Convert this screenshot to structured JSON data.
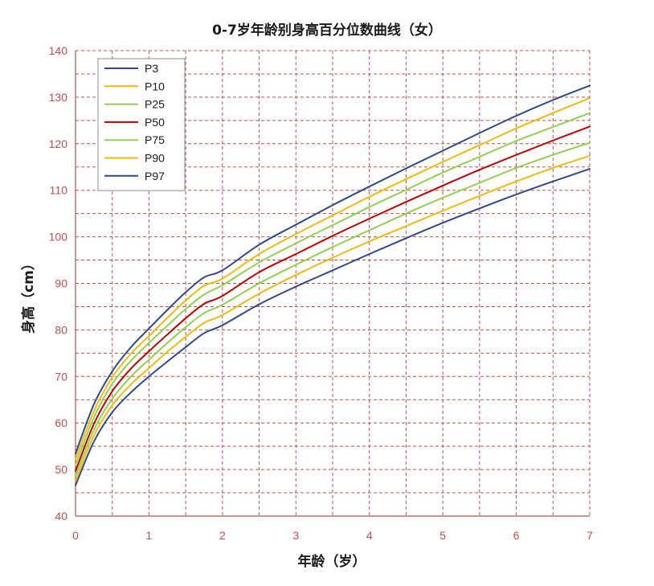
{
  "chart_data": {
    "type": "line",
    "title": "0-7岁年龄别身高百分位数曲线（女）",
    "xlabel": "年龄（岁）",
    "ylabel": "身高（cm）",
    "xlim": [
      0,
      7
    ],
    "ylim": [
      40,
      140
    ],
    "x_ticks": [
      0,
      1,
      2,
      3,
      4,
      5,
      6,
      7
    ],
    "y_ticks": [
      40,
      50,
      60,
      70,
      80,
      90,
      100,
      110,
      120,
      130,
      140
    ],
    "grid": true,
    "grid_minor_x": 0.5,
    "grid_minor_y": 5,
    "legend_position": "top-left",
    "colors": {
      "grid": "#c0504d",
      "axis": "#c0504d",
      "tick_label": "#c0504d"
    },
    "x": [
      0,
      0.25,
      0.5,
      0.75,
      1,
      1.25,
      1.5,
      1.75,
      2,
      2.5,
      3,
      3.5,
      4,
      4.5,
      5,
      5.5,
      6,
      6.5,
      7
    ],
    "series": [
      {
        "name": "P3",
        "color": "#2e4a8c",
        "values": [
          46.6,
          56.0,
          62.3,
          66.5,
          70.0,
          73.2,
          76.3,
          79.3,
          81.0,
          85.5,
          89.3,
          92.8,
          96.3,
          99.7,
          103.0,
          106.1,
          109.1,
          111.9,
          114.6
        ]
      },
      {
        "name": "P10",
        "color": "#f2b90f",
        "values": [
          47.5,
          57.3,
          63.8,
          68.2,
          71.8,
          75.3,
          78.5,
          81.5,
          83.2,
          87.8,
          91.8,
          95.5,
          99.0,
          102.3,
          105.6,
          108.8,
          111.9,
          114.8,
          117.4
        ]
      },
      {
        "name": "P25",
        "color": "#92d050",
        "values": [
          48.6,
          58.5,
          65.2,
          69.9,
          73.6,
          77.2,
          80.6,
          83.6,
          85.4,
          90.0,
          94.0,
          97.8,
          101.4,
          105.0,
          108.4,
          111.6,
          114.8,
          117.6,
          120.2
        ]
      },
      {
        "name": "P50",
        "color": "#c00000",
        "values": [
          49.7,
          59.8,
          66.8,
          71.6,
          75.4,
          79.0,
          82.5,
          85.6,
          87.3,
          92.4,
          96.3,
          100.2,
          103.9,
          107.5,
          111.0,
          114.4,
          117.6,
          120.7,
          123.7
        ]
      },
      {
        "name": "P75",
        "color": "#92d050",
        "values": [
          51.0,
          61.2,
          68.4,
          73.3,
          77.2,
          80.9,
          84.5,
          87.6,
          89.6,
          94.5,
          98.6,
          102.5,
          106.4,
          110.1,
          113.8,
          117.2,
          120.6,
          123.6,
          126.6
        ]
      },
      {
        "name": "P90",
        "color": "#f2b90f",
        "values": [
          52.2,
          62.5,
          69.8,
          74.8,
          78.7,
          82.6,
          86.3,
          89.5,
          91.0,
          96.3,
          100.6,
          104.6,
          108.6,
          112.4,
          116.1,
          119.7,
          123.3,
          126.6,
          129.8
        ]
      },
      {
        "name": "P97",
        "color": "#2e4a8c",
        "values": [
          53.4,
          64.0,
          71.1,
          76.2,
          80.3,
          84.3,
          88.1,
          91.3,
          92.8,
          98.3,
          102.6,
          106.8,
          110.8,
          114.7,
          118.5,
          122.3,
          126.0,
          129.4,
          132.5
        ]
      }
    ]
  }
}
